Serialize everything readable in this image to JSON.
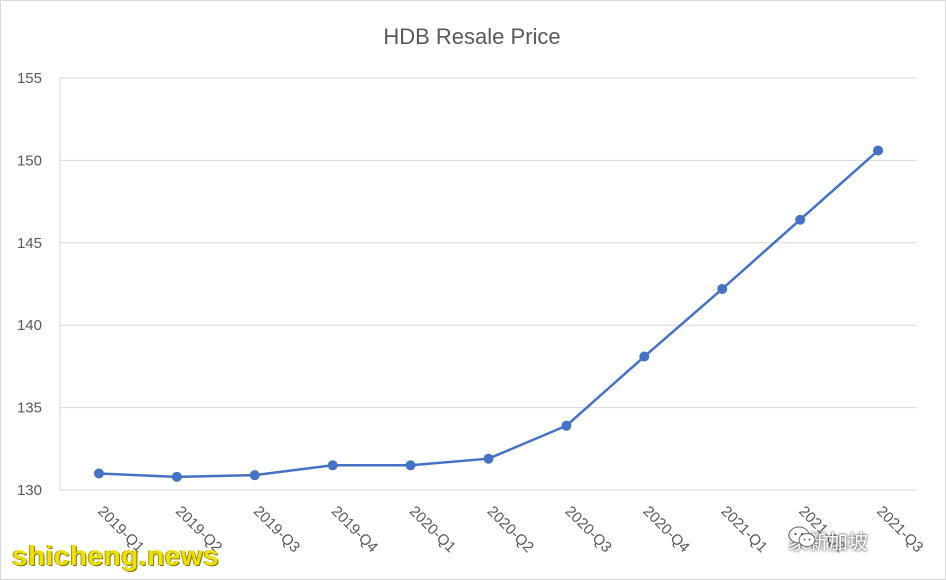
{
  "chart_data": {
    "type": "line",
    "title": "HDB Resale Price",
    "categories": [
      "2019-Q1",
      "2019-Q2",
      "2019-Q3",
      "2019-Q4",
      "2020-Q1",
      "2020-Q2",
      "2020-Q3",
      "2020-Q4",
      "2021-Q1",
      "2021-Q2",
      "2021-Q3"
    ],
    "series": [
      {
        "values": [
          131.0,
          130.8,
          130.9,
          131.5,
          131.5,
          131.9,
          133.9,
          138.1,
          142.2,
          146.4,
          150.6
        ],
        "color": "#4472c4"
      }
    ],
    "ylim": [
      130,
      155
    ],
    "yticks": [
      130,
      135,
      140,
      145,
      150,
      155
    ],
    "grid": "horizontal",
    "legend": "none"
  },
  "watermarks": {
    "left_text": "shicheng.news",
    "right_text": "家新加坡",
    "right_icon": "wechat-icon"
  }
}
